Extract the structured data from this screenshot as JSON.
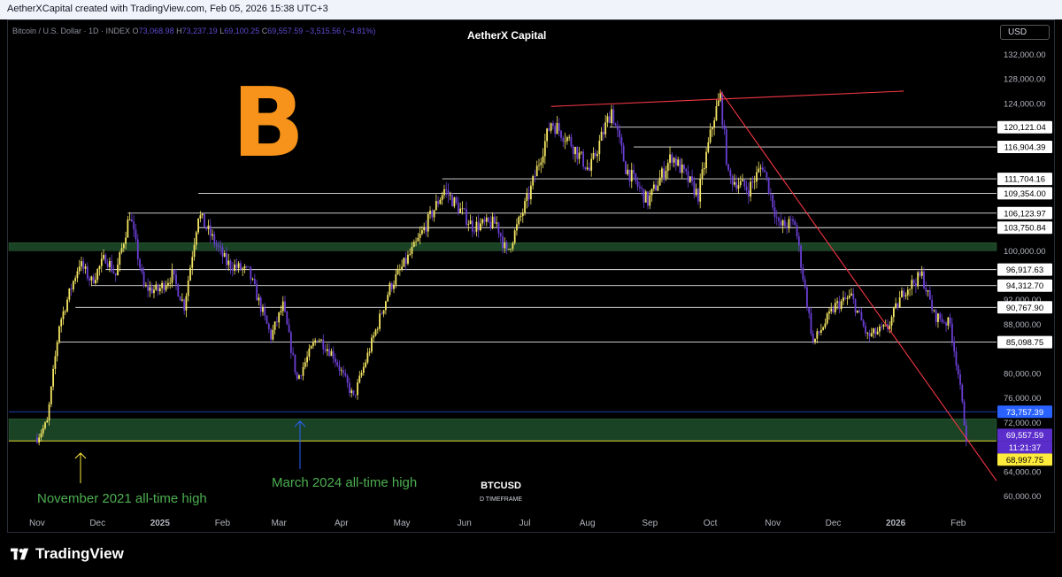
{
  "header": {
    "text": "AetherXCapital created with TradingView.com, Feb 05, 2026 15:38 UTC+3"
  },
  "symbol": {
    "name": "Bitcoin / U.S. Dollar · 1D · INDEX",
    "open_label": "O",
    "open": "73,068.98",
    "high_label": "H",
    "high": "73,237.19",
    "low_label": "L",
    "low": "69,100.25",
    "close_label": "C",
    "close": "69,557.59",
    "change": "−3,515.56 (−4.81%)"
  },
  "brand_title": "AetherX Capital",
  "currency": "USD",
  "logo": {
    "symbol": "B",
    "icon": "bitcoin-icon"
  },
  "footer_logo": "TradingView",
  "chart_data": {
    "type": "candlestick",
    "title": "AetherX Capital",
    "x_ticks": [
      "Nov",
      "Dec",
      "2025",
      "Feb",
      "Mar",
      "Apr",
      "May",
      "Jun",
      "Jul",
      "Aug",
      "Sep",
      "Oct",
      "Nov",
      "Dec",
      "2026",
      "Feb"
    ],
    "x_dates": [
      "2024-11-01",
      "2024-12-01",
      "2025-01-01",
      "2025-02-01",
      "2025-03-01",
      "2025-04-01",
      "2025-05-01",
      "2025-06-01",
      "2025-07-01",
      "2025-08-01",
      "2025-09-01",
      "2025-10-01",
      "2025-11-01",
      "2025-12-01",
      "2026-01-01",
      "2026-02-01"
    ],
    "y_ticks": [
      60000,
      64000,
      68000,
      72000,
      76000,
      80000,
      84000,
      88000,
      92000,
      96000,
      100000,
      104000,
      108000,
      112000,
      116000,
      120000,
      124000,
      128000,
      132000
    ],
    "y_tick_labels": [
      "60,000.00",
      "64,000.00",
      "",
      "72,000.00",
      "76,000.00",
      "80,000.00",
      "",
      "88,000.00",
      "92,000.00",
      "",
      "100,000.00",
      "",
      "",
      "",
      "",
      "",
      "124,000.00",
      "128,000.00",
      "132,000.00"
    ],
    "ylim": [
      57500,
      134500
    ],
    "close_path": [
      [
        "2024-11-01",
        69500
      ],
      [
        "2024-11-06",
        72000
      ],
      [
        "2024-11-12",
        88000
      ],
      [
        "2024-11-22",
        98000
      ],
      [
        "2024-11-28",
        95000
      ],
      [
        "2024-12-05",
        99000
      ],
      [
        "2024-12-10",
        96000
      ],
      [
        "2024-12-17",
        106000
      ],
      [
        "2024-12-24",
        94000
      ],
      [
        "2024-12-31",
        93500
      ],
      [
        "2025-01-07",
        96000
      ],
      [
        "2025-01-13",
        91000
      ],
      [
        "2025-01-20",
        106000
      ],
      [
        "2025-01-27",
        102000
      ],
      [
        "2025-02-03",
        98000
      ],
      [
        "2025-02-14",
        96500
      ],
      [
        "2025-02-25",
        86000
      ],
      [
        "2025-03-03",
        91000
      ],
      [
        "2025-03-10",
        79000
      ],
      [
        "2025-03-20",
        86000
      ],
      [
        "2025-03-28",
        83000
      ],
      [
        "2025-04-07",
        76000
      ],
      [
        "2025-04-15",
        84000
      ],
      [
        "2025-04-25",
        94000
      ],
      [
        "2025-05-08",
        101000
      ],
      [
        "2025-05-22",
        110000
      ],
      [
        "2025-06-05",
        104000
      ],
      [
        "2025-06-17",
        104500
      ],
      [
        "2025-06-22",
        99500
      ],
      [
        "2025-07-03",
        109000
      ],
      [
        "2025-07-14",
        121000
      ],
      [
        "2025-07-23",
        118000
      ],
      [
        "2025-08-02",
        113000
      ],
      [
        "2025-08-13",
        123000
      ],
      [
        "2025-08-20",
        113500
      ],
      [
        "2025-08-31",
        108000
      ],
      [
        "2025-09-12",
        115500
      ],
      [
        "2025-09-25",
        109000
      ],
      [
        "2025-10-03",
        122000
      ],
      [
        "2025-10-06",
        125000
      ],
      [
        "2025-10-10",
        112000
      ],
      [
        "2025-10-20",
        110000
      ],
      [
        "2025-10-27",
        114000
      ],
      [
        "2025-11-04",
        104000
      ],
      [
        "2025-11-12",
        104500
      ],
      [
        "2025-11-21",
        85000
      ],
      [
        "2025-12-02",
        91000
      ],
      [
        "2025-12-10",
        92500
      ],
      [
        "2025-12-18",
        86000
      ],
      [
        "2025-12-28",
        87500
      ],
      [
        "2026-01-05",
        93500
      ],
      [
        "2026-01-14",
        96000
      ],
      [
        "2026-01-20",
        89500
      ],
      [
        "2026-01-28",
        88000
      ],
      [
        "2026-02-01",
        80000
      ],
      [
        "2026-02-05",
        69557.59
      ]
    ],
    "horizontal_levels": [
      120121.04,
      116904.39,
      111704.16,
      109354.0,
      106123.97,
      103750.84,
      96917.63,
      94312.7,
      90767.9,
      85098.75,
      73757.39,
      69557.59,
      68997.75
    ],
    "level_labels": [
      "120,121.04",
      "116,904.39",
      "111,704.16",
      "109,354.00",
      "106,123.97",
      "103,750.84",
      "96,917.63",
      "94,312.70",
      "90,767.90",
      "85,098.75",
      "73,757.39",
      "69,557.59",
      "68,997.75"
    ],
    "countdown": "11:21:37",
    "support_zones": [
      [
        68997.75,
        72600
      ],
      [
        100000,
        101300
      ]
    ],
    "trendlines": [
      {
        "from": [
          "2025-07-14",
          123500
        ],
        "to": [
          "2026-01-05",
          126000
        ],
        "color": "#f23645"
      },
      {
        "from": [
          "2025-10-06",
          126000
        ],
        "to": [
          "2026-02-20",
          62500
        ],
        "color": "#f23645"
      }
    ],
    "annotations": [
      {
        "text": "November 2021 all-time high",
        "color": "#4caf50",
        "arrow": "#ffeb3b"
      },
      {
        "text": "March 2024 all-time high",
        "color": "#4caf50",
        "arrow": "#2962ff"
      }
    ],
    "watermark": {
      "symbol": "BTCUSD",
      "timeframe": "D TIMEFRAME"
    }
  }
}
